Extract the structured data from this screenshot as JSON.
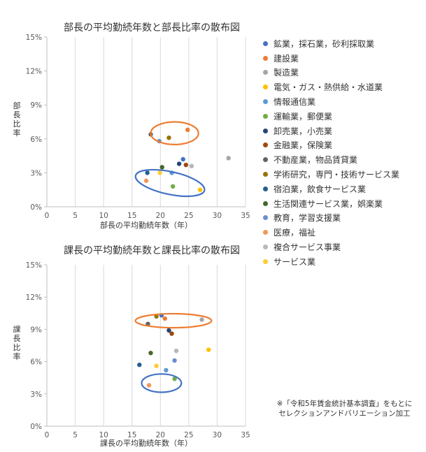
{
  "legend_items": [
    {
      "label": "鉱業，採石業，砂利採取業",
      "color": "#4472C4"
    },
    {
      "label": "建設業",
      "color": "#ED7D31"
    },
    {
      "label": "製造業",
      "color": "#A5A5A5"
    },
    {
      "label": "電気・ガス・熱供給・水道業",
      "color": "#FFC000"
    },
    {
      "label": "情報通信業",
      "color": "#5B9BD5"
    },
    {
      "label": "運輸業，郵便業",
      "color": "#70AD47"
    },
    {
      "label": "卸売業，小売業",
      "color": "#264478"
    },
    {
      "label": "金融業，保険業",
      "color": "#9E480E"
    },
    {
      "label": "不動産業，物品賃貸業",
      "color": "#636363"
    },
    {
      "label": "学術研究，専門・技術サービス業",
      "color": "#997300"
    },
    {
      "label": "宿泊業，飲食サービス業",
      "color": "#255E91"
    },
    {
      "label": "生活関連サービス業，娯楽業",
      "color": "#43682B"
    },
    {
      "label": "教育，学習支援業",
      "color": "#698ED0"
    },
    {
      "label": "医療，福祉",
      "color": "#F1975A"
    },
    {
      "label": "複合サービス事業",
      "color": "#B7B7B7"
    },
    {
      "label": "サービス業",
      "color": "#FFCD33"
    }
  ],
  "note": "※「令和5年賃金統計基本調査」をもとに\nセレクションアンドバリエーション加工",
  "chart_data": [
    {
      "type": "scatter",
      "title": "部長の平均勤続年数と部長比率の散布図",
      "xlabel": "部長の平均勤続年数（年）",
      "ylabel": "部長比率",
      "xlim": [
        0,
        35
      ],
      "ylim": [
        0,
        15
      ],
      "x_ticks": [
        "0",
        "5",
        "10",
        "15",
        "20",
        "25",
        "30",
        "35"
      ],
      "y_ticks": [
        "0%",
        "3%",
        "6%",
        "9%",
        "12%",
        "15%"
      ],
      "grid": "vertical",
      "points": [
        {
          "x": 24.0,
          "y": 4.2,
          "color": "#4472C4"
        },
        {
          "x": 24.8,
          "y": 6.8,
          "color": "#ED7D31"
        },
        {
          "x": 32.0,
          "y": 4.3,
          "color": "#A5A5A5"
        },
        {
          "x": 27.0,
          "y": 1.5,
          "color": "#FFC000"
        },
        {
          "x": 22.0,
          "y": 3.0,
          "color": "#5B9BD5"
        },
        {
          "x": 22.2,
          "y": 1.8,
          "color": "#70AD47"
        },
        {
          "x": 23.3,
          "y": 3.8,
          "color": "#264478"
        },
        {
          "x": 24.5,
          "y": 3.7,
          "color": "#9E480E"
        },
        {
          "x": 18.3,
          "y": 6.4,
          "color": "#636363"
        },
        {
          "x": 21.5,
          "y": 6.1,
          "color": "#997300"
        },
        {
          "x": 17.7,
          "y": 3.0,
          "color": "#255E91"
        },
        {
          "x": 20.3,
          "y": 3.5,
          "color": "#43682B"
        },
        {
          "x": 19.8,
          "y": 5.8,
          "color": "#698ED0"
        },
        {
          "x": 17.5,
          "y": 2.3,
          "color": "#F1975A"
        },
        {
          "x": 25.5,
          "y": 3.6,
          "color": "#B7B7B7"
        },
        {
          "x": 19.9,
          "y": 3.0,
          "color": "#FFCD33"
        }
      ],
      "ellipses": [
        {
          "cx": 22.5,
          "cy": 6.5,
          "rx": 4.2,
          "ry": 1.0,
          "color": "#ED7D31"
        },
        {
          "cx": 21.7,
          "cy": 2.1,
          "rx": 6.2,
          "ry": 1.0,
          "rotate": 12,
          "color": "#4472C4"
        }
      ]
    },
    {
      "type": "scatter",
      "title": "課長の平均勤続年数と課長比率の散布図",
      "xlabel": "課長の平均勤続年数（年）",
      "ylabel": "課長比率",
      "xlim": [
        0,
        35
      ],
      "ylim": [
        0,
        15
      ],
      "x_ticks": [
        "0",
        "5",
        "10",
        "15",
        "20",
        "25",
        "30",
        "35"
      ],
      "y_ticks": [
        "0%",
        "3%",
        "6%",
        "9%",
        "12%",
        "15%"
      ],
      "grid": "vertical",
      "points": [
        {
          "x": 20.2,
          "y": 10.3,
          "color": "#4472C4"
        },
        {
          "x": 20.8,
          "y": 10.0,
          "color": "#ED7D31"
        },
        {
          "x": 27.3,
          "y": 9.9,
          "color": "#A5A5A5"
        },
        {
          "x": 28.5,
          "y": 7.1,
          "color": "#FFC000"
        },
        {
          "x": 21.0,
          "y": 5.2,
          "color": "#5B9BD5"
        },
        {
          "x": 22.5,
          "y": 4.4,
          "color": "#70AD47"
        },
        {
          "x": 21.5,
          "y": 8.9,
          "color": "#264478"
        },
        {
          "x": 22.0,
          "y": 8.6,
          "color": "#9E480E"
        },
        {
          "x": 17.8,
          "y": 9.5,
          "color": "#636363"
        },
        {
          "x": 19.3,
          "y": 10.2,
          "color": "#997300"
        },
        {
          "x": 16.3,
          "y": 5.7,
          "color": "#255E91"
        },
        {
          "x": 18.3,
          "y": 6.8,
          "color": "#43682B"
        },
        {
          "x": 22.5,
          "y": 6.1,
          "color": "#698ED0"
        },
        {
          "x": 18.0,
          "y": 3.8,
          "color": "#F1975A"
        },
        {
          "x": 22.8,
          "y": 7.0,
          "color": "#B7B7B7"
        },
        {
          "x": 19.3,
          "y": 5.6,
          "color": "#FFCD33"
        }
      ],
      "ellipses": [
        {
          "cx": 22.3,
          "cy": 9.8,
          "rx": 6.7,
          "ry": 0.65,
          "color": "#ED7D31"
        },
        {
          "cx": 20.2,
          "cy": 4.0,
          "rx": 3.5,
          "ry": 0.85,
          "color": "#4472C4"
        }
      ]
    }
  ]
}
